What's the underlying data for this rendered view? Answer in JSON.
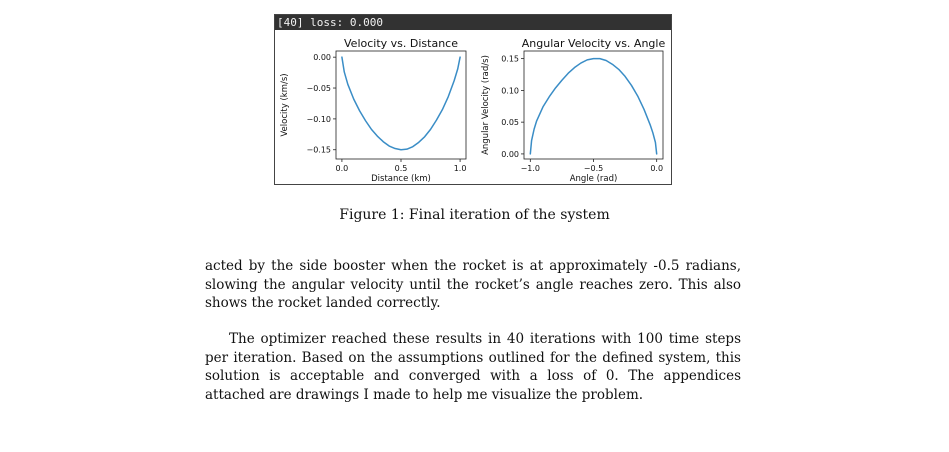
{
  "figure": {
    "header_text": "[40] loss: 0.000",
    "caption": "Figure 1: Final iteration of the system"
  },
  "chart_data": [
    {
      "type": "line",
      "title": "Velocity vs. Distance",
      "xlabel": "Distance (km)",
      "ylabel": "Velocity (km/s)",
      "xlim": [
        -0.05,
        1.05
      ],
      "ylim": [
        -0.165,
        0.01
      ],
      "xticks": [
        0.0,
        0.5,
        1.0
      ],
      "xtick_labels": [
        "0.0",
        "0.5",
        "1.0"
      ],
      "yticks": [
        0.0,
        -0.05,
        -0.1,
        -0.15
      ],
      "ytick_labels": [
        "0.00",
        "−0.05",
        "−0.10",
        "−0.15"
      ],
      "grid": false,
      "color": "#3a8dc6",
      "series": [
        {
          "x": [
            0.0,
            0.02,
            0.05,
            0.1,
            0.15,
            0.2,
            0.25,
            0.3,
            0.35,
            0.4,
            0.45,
            0.5,
            0.55,
            0.6,
            0.65,
            0.7,
            0.75,
            0.8,
            0.85,
            0.9,
            0.95,
            0.98,
            1.0
          ],
          "y": [
            0.0,
            -0.024,
            -0.044,
            -0.068,
            -0.087,
            -0.103,
            -0.117,
            -0.128,
            -0.137,
            -0.144,
            -0.148,
            -0.15,
            -0.149,
            -0.145,
            -0.138,
            -0.129,
            -0.117,
            -0.102,
            -0.085,
            -0.064,
            -0.038,
            -0.019,
            0.0
          ]
        }
      ]
    },
    {
      "type": "line",
      "title": "Angular Velocity vs. Angle",
      "xlabel": "Angle (rad)",
      "ylabel": "Angular Velocity (rad/s)",
      "xlim": [
        -1.05,
        0.05
      ],
      "ylim": [
        -0.008,
        0.162
      ],
      "xticks": [
        -1.0,
        -0.5,
        0.0
      ],
      "xtick_labels": [
        "−1.0",
        "−0.5",
        "0.0"
      ],
      "yticks": [
        0.0,
        0.05,
        0.1,
        0.15
      ],
      "ytick_labels": [
        "0.00",
        "0.05",
        "0.10",
        "0.15"
      ],
      "grid": false,
      "color": "#3a8dc6",
      "series": [
        {
          "x": [
            -1.0,
            -0.99,
            -0.97,
            -0.95,
            -0.9,
            -0.85,
            -0.8,
            -0.75,
            -0.7,
            -0.65,
            -0.6,
            -0.55,
            -0.5,
            -0.45,
            -0.4,
            -0.35,
            -0.3,
            -0.25,
            -0.2,
            -0.15,
            -0.1,
            -0.05,
            -0.03,
            -0.01,
            0.0
          ],
          "y": [
            0.0,
            0.021,
            0.039,
            0.052,
            0.074,
            0.09,
            0.104,
            0.116,
            0.127,
            0.136,
            0.143,
            0.148,
            0.15,
            0.15,
            0.147,
            0.141,
            0.133,
            0.122,
            0.108,
            0.091,
            0.07,
            0.045,
            0.033,
            0.018,
            0.0
          ]
        }
      ]
    }
  ],
  "paragraphs": [
    "acted by the side booster when the rocket is at approximately -0.5 radians, slowing the angular velocity until the rocket’s angle reaches zero.  This also shows the rocket landed correctly.",
    "The optimizer reached these results in 40 iterations with 100 time steps per iteration. Based on the assumptions outlined for the defined system, this solution is acceptable and converged with a loss of 0. The appendices attached are drawings I made to help me visualize the problem."
  ]
}
